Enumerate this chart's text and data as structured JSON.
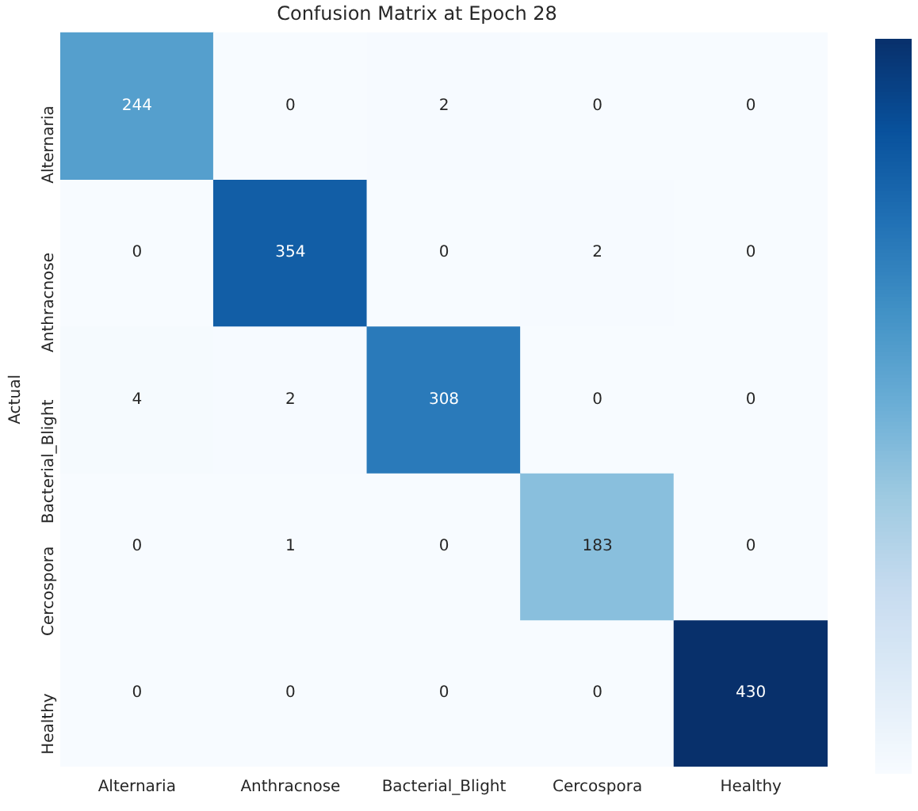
{
  "chart_data": {
    "type": "heatmap",
    "title": "Confusion Matrix at Epoch 28",
    "ylabel": "Actual",
    "categories": [
      "Alternaria",
      "Anthracnose",
      "Bacterial_Blight",
      "Cercospora",
      "Healthy"
    ],
    "y_categories": [
      "Alternaria",
      "Anthracnose",
      "Bacterial_Blight",
      "Cercospora",
      "Healthy"
    ],
    "cells": [
      [
        244,
        0,
        2,
        0,
        0
      ],
      [
        0,
        354,
        0,
        2,
        0
      ],
      [
        4,
        2,
        308,
        0,
        0
      ],
      [
        0,
        1,
        0,
        183,
        0
      ],
      [
        0,
        0,
        0,
        0,
        430
      ]
    ],
    "data_labels": true
  }
}
